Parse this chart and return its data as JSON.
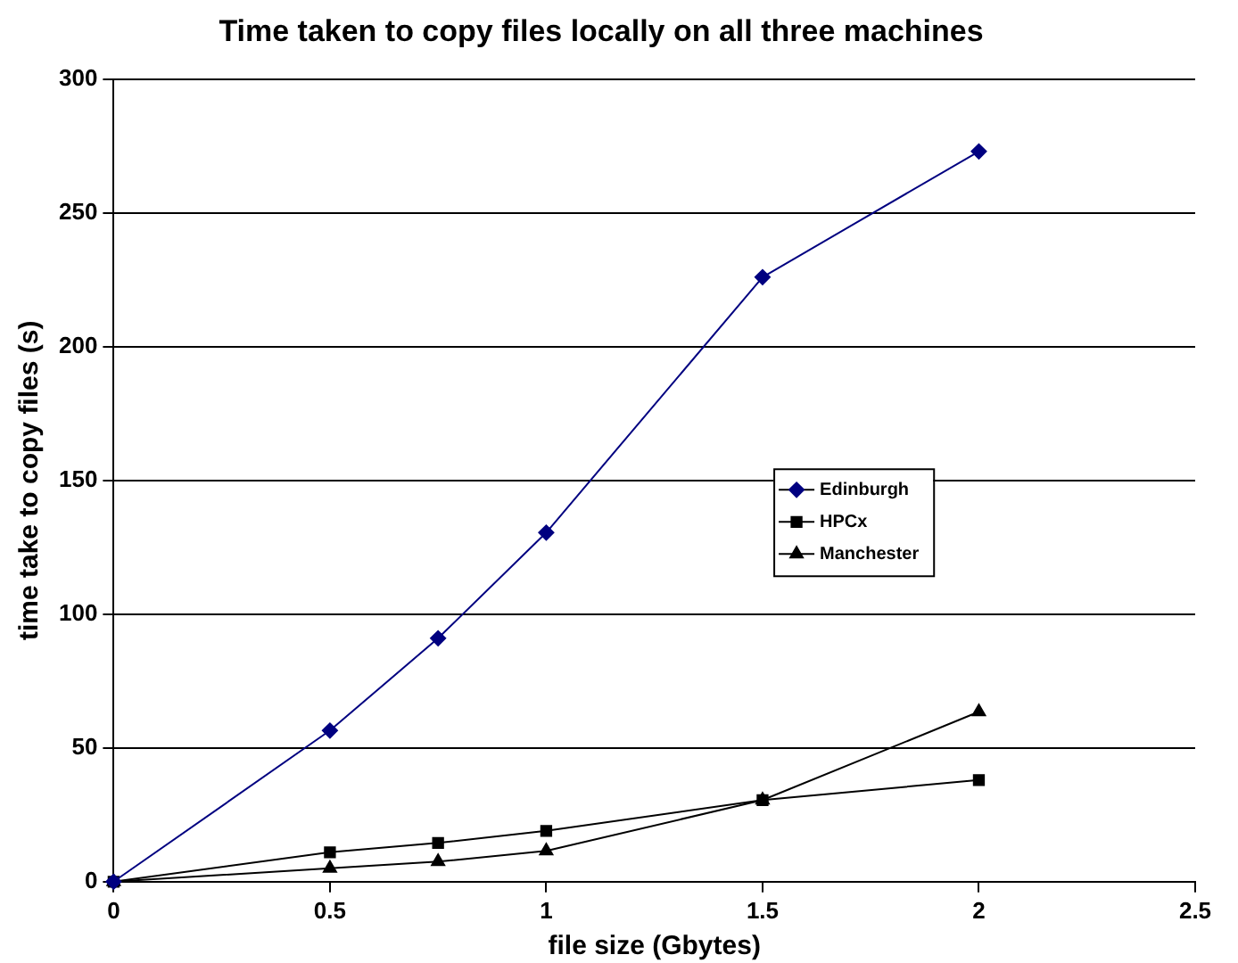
{
  "chart_data": {
    "type": "line",
    "title": "Time taken to copy files locally on all three machines",
    "xlabel": "file size (Gbytes)",
    "ylabel": "time take to copy files (s)",
    "series": [
      {
        "name": "Edinburgh",
        "color": "#000080",
        "marker": "diamond",
        "x": [
          0,
          0.5,
          0.75,
          1,
          1.5,
          2
        ],
        "values": [
          0,
          56.5,
          91,
          130.5,
          226,
          273
        ]
      },
      {
        "name": "HPCx",
        "color": "#000000",
        "marker": "square",
        "x": [
          0,
          0.5,
          0.75,
          1,
          1.5,
          2
        ],
        "values": [
          0,
          11,
          14.5,
          19,
          30.5,
          38
        ]
      },
      {
        "name": "Manchester",
        "color": "#000000",
        "marker": "triangle",
        "x": [
          0,
          0.5,
          0.75,
          1,
          1.5,
          2
        ],
        "values": [
          0,
          5,
          7.5,
          11.5,
          30.5,
          63.5
        ]
      }
    ],
    "xlim": [
      0,
      2.5
    ],
    "xticks": [
      0,
      0.5,
      1,
      1.5,
      2,
      2.5
    ],
    "ylim": [
      0,
      300
    ],
    "yticks": [
      0,
      50,
      100,
      150,
      200,
      250,
      300
    ],
    "grid": "y",
    "legend": "right"
  }
}
